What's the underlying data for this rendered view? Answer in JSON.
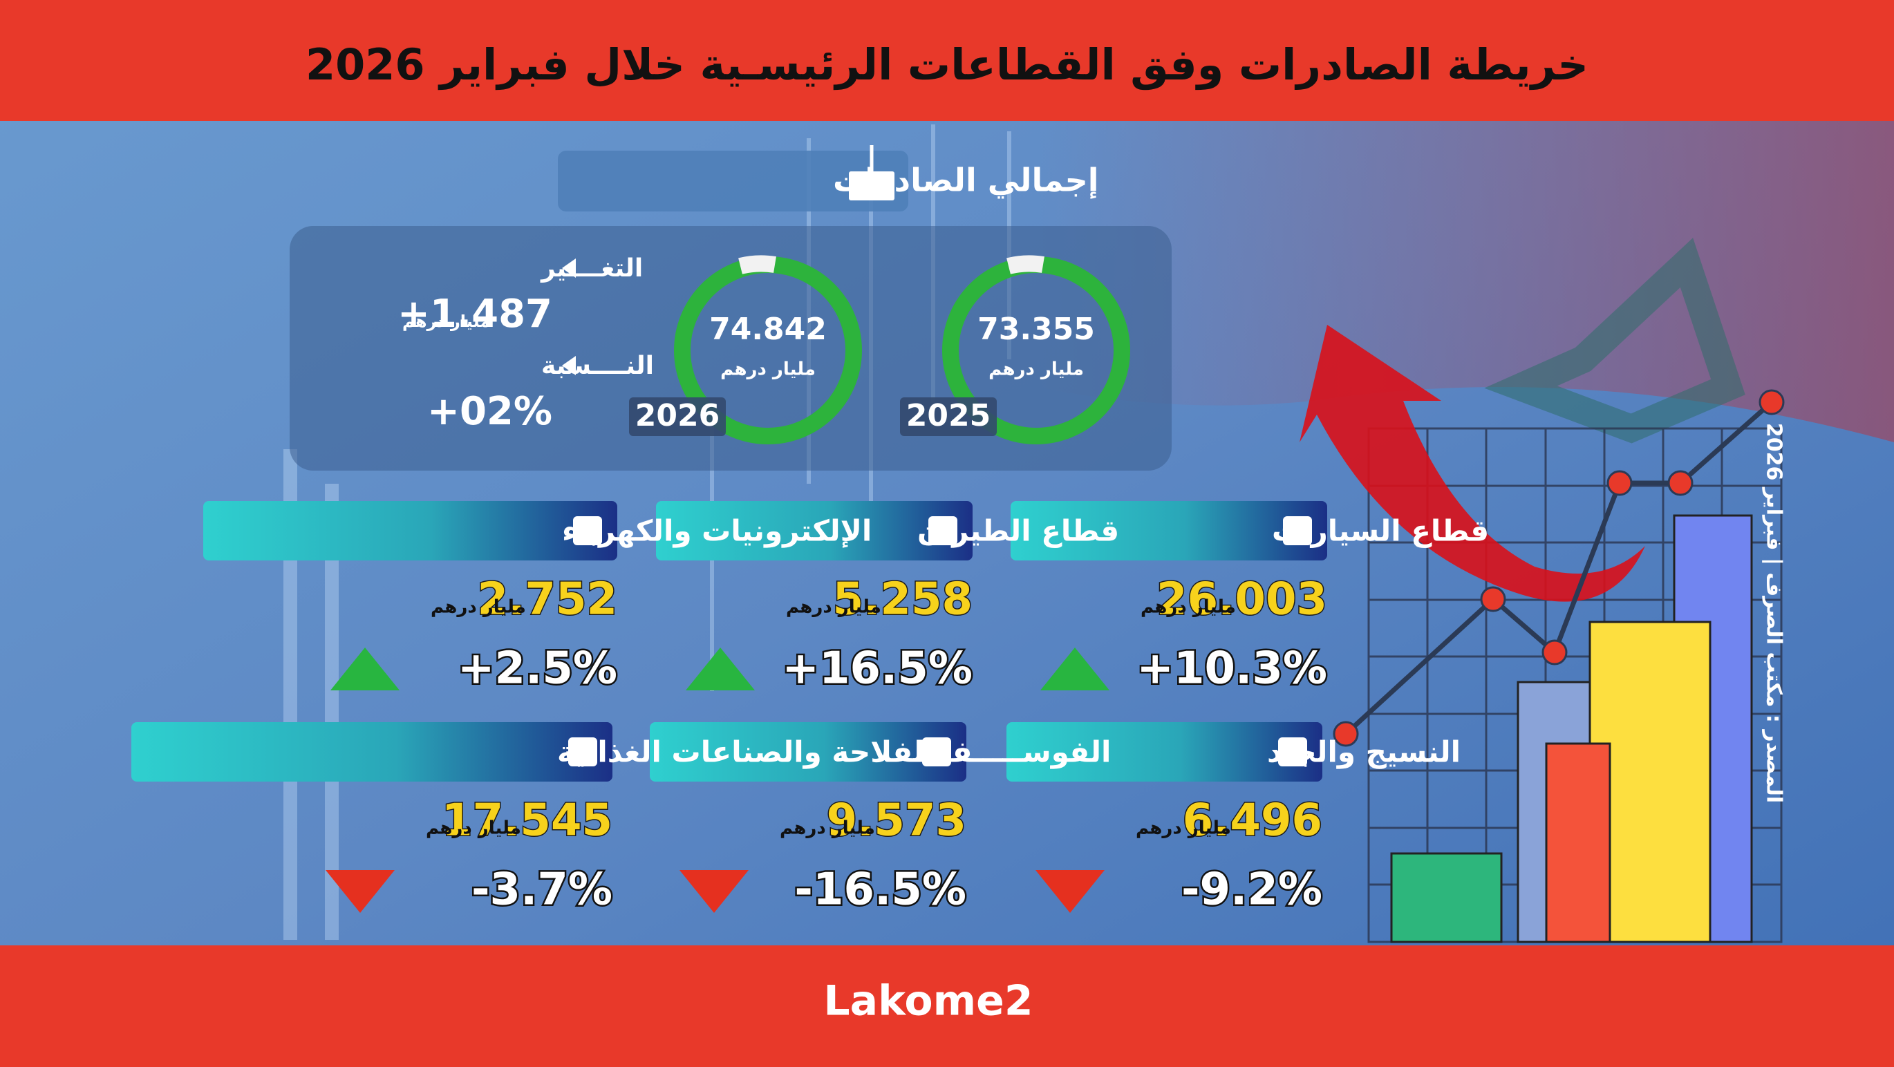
{
  "header": {
    "title": "خريطة الصادرات وفق القطاعات الرئيسـية خلال فبراير 2026"
  },
  "total": {
    "label": "إجمالي الصادرات",
    "years": [
      {
        "year": "2025",
        "value": "73.355",
        "unit": "مليار درهم"
      },
      {
        "year": "2026",
        "value": "74.842",
        "unit": "مليار درهم"
      }
    ],
    "change": {
      "label": "التغــــير",
      "value": "+1.487",
      "unit": "مليار درهم"
    },
    "ratio": {
      "label": "النــــسبة",
      "value": "+02%"
    }
  },
  "sectors": [
    {
      "name": "قطاع السيارات",
      "value": "26.003",
      "unit": "مليار درهم",
      "change": "+10.3%"
    },
    {
      "name": "قطاع الطيران",
      "value": "5.258",
      "unit": "مليار درهم",
      "change": "+16.5%"
    },
    {
      "name": "الإلكترونيات والكهرباء",
      "value": "2.752",
      "unit": "مليار درهم",
      "change": "+2.5%"
    },
    {
      "name": "النسيج والجلد",
      "value": "6.496",
      "unit": "مليار درهم",
      "change": "-9.2%"
    },
    {
      "name": "الفوســـــفاط",
      "value": "9.573",
      "unit": "مليار درهم",
      "change": "-16.5%"
    },
    {
      "name": "الفلاحة والصناعات الغذائية",
      "value": "17.545",
      "unit": "مليار درهم",
      "change": "-3.7%"
    }
  ],
  "source": "المصدر : مكتب الصرف | فبراير 2026",
  "footer": {
    "brand": "Lakome2"
  }
}
